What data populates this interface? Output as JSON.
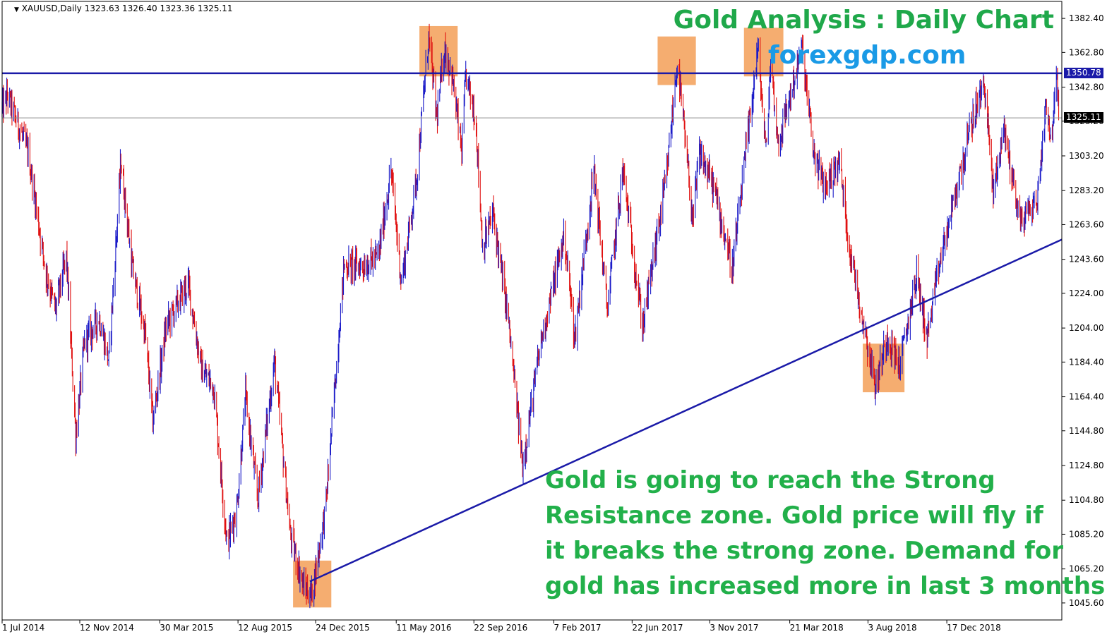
{
  "symbol_info": "XAUUSD,Daily  1323.63 1326.40 1323.36 1325.11",
  "title": "Gold Analysis : Daily Chart",
  "website": "forexgdp.com",
  "annotation_lines": [
    "Gold is going to reach the Strong",
    "Resistance zone. Gold price will fly if",
    "it breaks the strong zone. Demand for",
    "gold has increased more in last 3 months."
  ],
  "colors": {
    "bull_candle": "#1a1ac8",
    "bear_candle": "#e01010",
    "trendline": "#1a1aa8",
    "resistance_line": "#1a1aa8",
    "zone_fill": "#f4a460",
    "title_green": "#1fa84a",
    "website_blue": "#1a9ae6"
  },
  "chart_data": {
    "type": "candlestick",
    "symbol": "XAUUSD",
    "timeframe": "Daily",
    "ohlc_current": {
      "open": 1323.63,
      "high": 1326.4,
      "low": 1323.36,
      "close": 1325.11
    },
    "ylim": [
      1035.8,
      1392.2
    ],
    "y_ticks": [
      "1382.40",
      "1362.80",
      "1342.80",
      "1323.20",
      "1303.20",
      "1283.20",
      "1263.60",
      "1243.60",
      "1224.00",
      "1204.00",
      "1184.40",
      "1164.40",
      "1144.80",
      "1124.80",
      "1104.80",
      "1085.20",
      "1065.20",
      "1045.60"
    ],
    "x_ticks": [
      "1 Jul 2014",
      "12 Nov 2014",
      "30 Mar 2015",
      "12 Aug 2015",
      "24 Dec 2015",
      "11 May 2016",
      "22 Sep 2016",
      "7 Feb 2017",
      "22 Jun 2017",
      "3 Nov 2017",
      "21 Mar 2018",
      "3 Aug 2018",
      "17 Dec 2018"
    ],
    "resistance_level": 1350.78,
    "resistance_label": "1350.78",
    "current_price": 1325.11,
    "current_price_label": "1325.11",
    "trendline": {
      "start": {
        "date": "2015-12-14",
        "price": 1058
      },
      "end": {
        "date": "2019-05-31",
        "price": 1255
      }
    },
    "price_path": [
      {
        "date": "2014-07-01",
        "price": 1330
      },
      {
        "date": "2014-07-10",
        "price": 1338
      },
      {
        "date": "2014-08-15",
        "price": 1305
      },
      {
        "date": "2014-09-15",
        "price": 1235
      },
      {
        "date": "2014-10-01",
        "price": 1215
      },
      {
        "date": "2014-10-20",
        "price": 1245
      },
      {
        "date": "2014-11-05",
        "price": 1142
      },
      {
        "date": "2014-11-20",
        "price": 1195
      },
      {
        "date": "2014-12-15",
        "price": 1210
      },
      {
        "date": "2015-01-01",
        "price": 1185
      },
      {
        "date": "2015-01-22",
        "price": 1300
      },
      {
        "date": "2015-02-10",
        "price": 1240
      },
      {
        "date": "2015-03-05",
        "price": 1200
      },
      {
        "date": "2015-03-18",
        "price": 1150
      },
      {
        "date": "2015-04-10",
        "price": 1205
      },
      {
        "date": "2015-05-18",
        "price": 1230
      },
      {
        "date": "2015-06-10",
        "price": 1180
      },
      {
        "date": "2015-07-01",
        "price": 1170
      },
      {
        "date": "2015-07-24",
        "price": 1080
      },
      {
        "date": "2015-08-10",
        "price": 1100
      },
      {
        "date": "2015-08-25",
        "price": 1165
      },
      {
        "date": "2015-09-15",
        "price": 1105
      },
      {
        "date": "2015-10-14",
        "price": 1185
      },
      {
        "date": "2015-11-10",
        "price": 1085
      },
      {
        "date": "2015-12-03",
        "price": 1055
      },
      {
        "date": "2015-12-17",
        "price": 1050
      },
      {
        "date": "2016-01-10",
        "price": 1100
      },
      {
        "date": "2016-02-11",
        "price": 1240
      },
      {
        "date": "2016-03-15",
        "price": 1240
      },
      {
        "date": "2016-04-10",
        "price": 1245
      },
      {
        "date": "2016-05-02",
        "price": 1295
      },
      {
        "date": "2016-05-20",
        "price": 1230
      },
      {
        "date": "2016-06-15",
        "price": 1290
      },
      {
        "date": "2016-07-06",
        "price": 1372
      },
      {
        "date": "2016-07-20",
        "price": 1325
      },
      {
        "date": "2016-08-02",
        "price": 1365
      },
      {
        "date": "2016-08-15",
        "price": 1350
      },
      {
        "date": "2016-09-01",
        "price": 1305
      },
      {
        "date": "2016-09-08",
        "price": 1350
      },
      {
        "date": "2016-09-25",
        "price": 1325
      },
      {
        "date": "2016-10-07",
        "price": 1250
      },
      {
        "date": "2016-10-25",
        "price": 1270
      },
      {
        "date": "2016-11-20",
        "price": 1210
      },
      {
        "date": "2016-12-15",
        "price": 1125
      },
      {
        "date": "2017-01-15",
        "price": 1195
      },
      {
        "date": "2017-02-25",
        "price": 1258
      },
      {
        "date": "2017-03-15",
        "price": 1198
      },
      {
        "date": "2017-04-17",
        "price": 1295
      },
      {
        "date": "2017-05-10",
        "price": 1215
      },
      {
        "date": "2017-06-06",
        "price": 1295
      },
      {
        "date": "2017-07-10",
        "price": 1205
      },
      {
        "date": "2017-08-20",
        "price": 1290
      },
      {
        "date": "2017-09-08",
        "price": 1358
      },
      {
        "date": "2017-10-05",
        "price": 1265
      },
      {
        "date": "2017-10-16",
        "price": 1305
      },
      {
        "date": "2017-11-10",
        "price": 1285
      },
      {
        "date": "2017-12-12",
        "price": 1238
      },
      {
        "date": "2018-01-25",
        "price": 1365
      },
      {
        "date": "2018-02-08",
        "price": 1305
      },
      {
        "date": "2018-02-16",
        "price": 1358
      },
      {
        "date": "2018-03-01",
        "price": 1310
      },
      {
        "date": "2018-04-11",
        "price": 1365
      },
      {
        "date": "2018-05-01",
        "price": 1305
      },
      {
        "date": "2018-05-20",
        "price": 1285
      },
      {
        "date": "2018-06-15",
        "price": 1300
      },
      {
        "date": "2018-07-01",
        "price": 1252
      },
      {
        "date": "2018-08-16",
        "price": 1170
      },
      {
        "date": "2018-09-05",
        "price": 1200
      },
      {
        "date": "2018-09-27",
        "price": 1182
      },
      {
        "date": "2018-10-26",
        "price": 1235
      },
      {
        "date": "2018-11-13",
        "price": 1198
      },
      {
        "date": "2018-12-04",
        "price": 1240
      },
      {
        "date": "2019-01-07",
        "price": 1290
      },
      {
        "date": "2019-01-31",
        "price": 1325
      },
      {
        "date": "2019-02-20",
        "price": 1345
      },
      {
        "date": "2019-03-07",
        "price": 1282
      },
      {
        "date": "2019-03-25",
        "price": 1320
      },
      {
        "date": "2019-04-23",
        "price": 1265
      },
      {
        "date": "2019-05-22",
        "price": 1278
      },
      {
        "date": "2019-06-07",
        "price": 1337
      },
      {
        "date": "2019-06-14",
        "price": 1312
      },
      {
        "date": "2019-06-25",
        "price": 1347
      },
      {
        "date": "2019-06-28",
        "price": 1325
      }
    ],
    "zones": [
      {
        "from": "2015-11-15",
        "to": "2016-01-20",
        "low": 1043,
        "high": 1070
      },
      {
        "from": "2016-06-20",
        "to": "2016-08-25",
        "low": 1349,
        "high": 1378
      },
      {
        "from": "2017-08-05",
        "to": "2017-10-10",
        "low": 1344,
        "high": 1372
      },
      {
        "from": "2018-01-01",
        "to": "2018-03-10",
        "low": 1349,
        "high": 1377
      },
      {
        "from": "2018-07-25",
        "to": "2018-10-05",
        "low": 1167,
        "high": 1195
      }
    ]
  }
}
